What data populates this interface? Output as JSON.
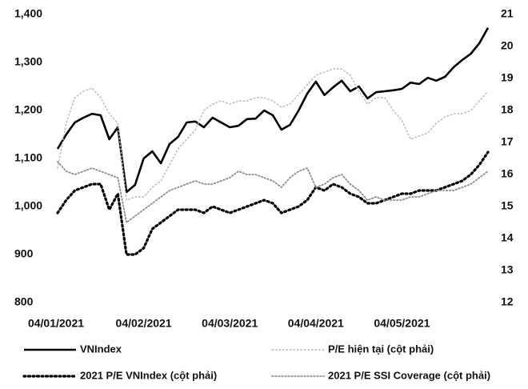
{
  "chart_data": {
    "type": "line",
    "categories": [
      "04/01/2021",
      null,
      null,
      null,
      null,
      null,
      null,
      null,
      null,
      null,
      "04/02/2021",
      null,
      null,
      null,
      null,
      null,
      null,
      null,
      null,
      null,
      "04/03/2021",
      null,
      null,
      null,
      null,
      null,
      null,
      null,
      null,
      null,
      "04/04/2021",
      null,
      null,
      null,
      null,
      null,
      null,
      null,
      null,
      null,
      "04/05/2021",
      null,
      null,
      null,
      null,
      null,
      null,
      null,
      null,
      null,
      null
    ],
    "series": [
      {
        "name": "VNIndex",
        "color": "#000000",
        "values": [
          1120,
          1150,
          1175,
          1185,
          1193,
          1190,
          1140,
          1165,
          1030,
          1045,
          1100,
          1115,
          1090,
          1130,
          1145,
          1175,
          1177,
          1165,
          1185,
          1175,
          1165,
          1168,
          1182,
          1183,
          1200,
          1190,
          1160,
          1170,
          1200,
          1235,
          1260,
          1232,
          1248,
          1262,
          1240,
          1250,
          1225,
          1238,
          1240,
          1242,
          1245,
          1258,
          1255,
          1268,
          1262,
          1270,
          1290,
          1305,
          1318,
          1340,
          1372
        ]
      },
      {
        "name": "P/E hiện tại (cột phải)",
        "color": "#b5b5b5",
        "axis": "y2",
        "values": [
          16.2,
          17.6,
          18.4,
          18.6,
          18.7,
          18.4,
          17.9,
          17.6,
          15.2,
          15.3,
          15.3,
          15.6,
          15.8,
          16.3,
          16.8,
          17.1,
          17.4,
          18.0,
          18.2,
          18.3,
          18.2,
          18.3,
          18.3,
          18.4,
          18.4,
          18.3,
          18.1,
          18.2,
          18.5,
          18.8,
          19.1,
          19.2,
          19.3,
          19.3,
          19.1,
          18.6,
          18.2,
          18.4,
          18.4,
          18.0,
          17.7,
          17.1,
          17.2,
          17.3,
          17.6,
          17.8,
          17.9,
          17.9,
          18.0,
          18.3,
          18.6
        ]
      },
      {
        "name": "2021 P/E VNIndex (cột phải)",
        "color": "#000000",
        "axis": "y2",
        "values": [
          14.8,
          15.2,
          15.5,
          15.6,
          15.7,
          15.7,
          14.9,
          15.4,
          13.5,
          13.5,
          13.7,
          14.3,
          14.5,
          14.7,
          14.9,
          14.9,
          14.9,
          14.8,
          15.0,
          14.9,
          14.8,
          14.9,
          15.0,
          15.1,
          15.2,
          15.1,
          14.8,
          14.9,
          15.0,
          15.2,
          15.6,
          15.5,
          15.7,
          15.6,
          15.4,
          15.3,
          15.1,
          15.1,
          15.2,
          15.3,
          15.4,
          15.4,
          15.5,
          15.5,
          15.5,
          15.6,
          15.7,
          15.8,
          16.0,
          16.3,
          16.7
        ]
      },
      {
        "name": "2021 P/E SSI Coverage (cột phải)",
        "color": "#8c8c8c",
        "axis": "y2",
        "values": [
          16.4,
          16.1,
          16.0,
          16.1,
          16.2,
          16.1,
          16.0,
          15.9,
          14.5,
          14.7,
          14.9,
          15.1,
          15.3,
          15.5,
          15.6,
          15.7,
          15.8,
          15.7,
          15.7,
          15.8,
          15.9,
          16.1,
          16.0,
          16.0,
          15.9,
          15.8,
          15.6,
          15.9,
          16.1,
          16.2,
          15.6,
          15.7,
          15.9,
          16.0,
          15.7,
          15.5,
          15.2,
          15.3,
          15.2,
          15.2,
          15.2,
          15.3,
          15.3,
          15.4,
          15.5,
          15.5,
          15.5,
          15.6,
          15.7,
          15.9,
          16.1
        ]
      }
    ],
    "ylim": [
      800,
      1400
    ],
    "yticks": [
      {
        "value": 800,
        "label": "800"
      },
      {
        "value": 900,
        "label": "900"
      },
      {
        "value": 1000,
        "label": "1,000"
      },
      {
        "value": 1100,
        "label": "1,100"
      },
      {
        "value": 1200,
        "label": "1,200"
      },
      {
        "value": 1300,
        "label": "1,300"
      },
      {
        "value": 1400,
        "label": "1,400"
      }
    ],
    "y2lim": [
      12,
      21
    ],
    "y2ticks": [
      12,
      13,
      14,
      15,
      16,
      17,
      18,
      19,
      20,
      21
    ],
    "grid": false,
    "legend": "bottom"
  }
}
